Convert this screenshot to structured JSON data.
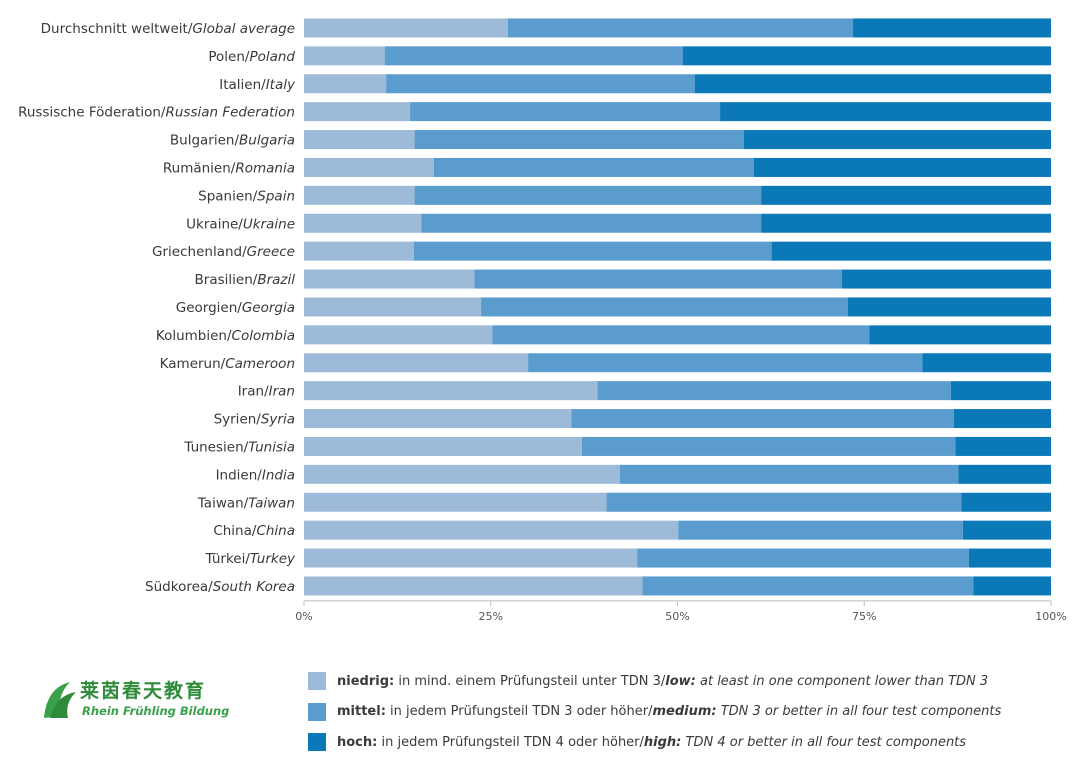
{
  "colors": {
    "low": "#9dbad9",
    "medium": "#5b9cce",
    "high": "#0b78b8"
  },
  "chart_data": {
    "type": "bar",
    "orientation": "horizontal",
    "stacked": true,
    "xlim": [
      0,
      100
    ],
    "xticks": [
      "0%",
      "25%",
      "50%",
      "75%",
      "100%"
    ],
    "categories": [
      {
        "de": "Durchschnitt weltweit",
        "en": "Global average"
      },
      {
        "de": "Polen",
        "en": "Poland"
      },
      {
        "de": "Italien",
        "en": "Italy"
      },
      {
        "de": "Russische Föderation",
        "en": "Russian Federation"
      },
      {
        "de": "Bulgarien",
        "en": "Bulgaria"
      },
      {
        "de": "Rumänien",
        "en": "Romania"
      },
      {
        "de": "Spanien",
        "en": "Spain"
      },
      {
        "de": "Ukraine",
        "en": "Ukraine"
      },
      {
        "de": "Griechenland",
        "en": "Greece"
      },
      {
        "de": "Brasilien",
        "en": "Brazil"
      },
      {
        "de": "Georgien",
        "en": "Georgia"
      },
      {
        "de": "Kolumbien",
        "en": "Colombia"
      },
      {
        "de": "Kamerun",
        "en": "Cameroon"
      },
      {
        "de": "Iran",
        "en": "Iran"
      },
      {
        "de": "Syrien",
        "en": "Syria"
      },
      {
        "de": "Tunesien",
        "en": "Tunisia"
      },
      {
        "de": "Indien",
        "en": "India"
      },
      {
        "de": "Taiwan",
        "en": "Taiwan"
      },
      {
        "de": "China",
        "en": "China"
      },
      {
        "de": "Türkei",
        "en": "Turkey"
      },
      {
        "de": "Südkorea",
        "en": "South Korea"
      }
    ],
    "series": [
      {
        "name": "low",
        "values": [
          27.3,
          10.8,
          11.0,
          14.2,
          14.8,
          17.4,
          14.8,
          15.7,
          14.7,
          22.8,
          23.7,
          25.2,
          30.0,
          39.3,
          35.8,
          37.2,
          42.3,
          40.5,
          50.1,
          44.6,
          45.3
        ]
      },
      {
        "name": "medium",
        "values": [
          46.2,
          39.9,
          41.3,
          41.5,
          44.1,
          42.8,
          46.4,
          45.5,
          47.9,
          49.2,
          49.1,
          50.5,
          52.8,
          47.3,
          51.2,
          50.0,
          45.3,
          47.5,
          38.1,
          44.4,
          44.3
        ]
      },
      {
        "name": "high",
        "values": [
          26.5,
          49.3,
          47.7,
          44.3,
          41.1,
          39.8,
          38.8,
          38.8,
          37.4,
          28.0,
          27.2,
          24.3,
          17.2,
          13.4,
          13.0,
          12.8,
          12.4,
          12.0,
          11.8,
          11.0,
          10.4
        ]
      }
    ]
  },
  "legend": [
    {
      "key": "low",
      "de_bold": "niedrig:",
      "de_text": " in mind. einem Prüfungsteil unter TDN 3/",
      "en_bold": "low:",
      "en_text": " at least in one component lower than TDN 3"
    },
    {
      "key": "medium",
      "de_bold": "mittel:",
      "de_text": " in jedem Prüfungsteil TDN 3 oder höher/",
      "en_bold": "medium:",
      "en_text": " TDN 3 or better in all four test components"
    },
    {
      "key": "high",
      "de_bold": "hoch:",
      "de_text": " in jedem Prüfungsteil TDN 4 oder höher/",
      "en_bold": "high:",
      "en_text": " TDN 4 or better in all four test components"
    }
  ],
  "logo": {
    "cn": "莱茵春天教育",
    "en": "Rhein Frühling Bildung"
  }
}
